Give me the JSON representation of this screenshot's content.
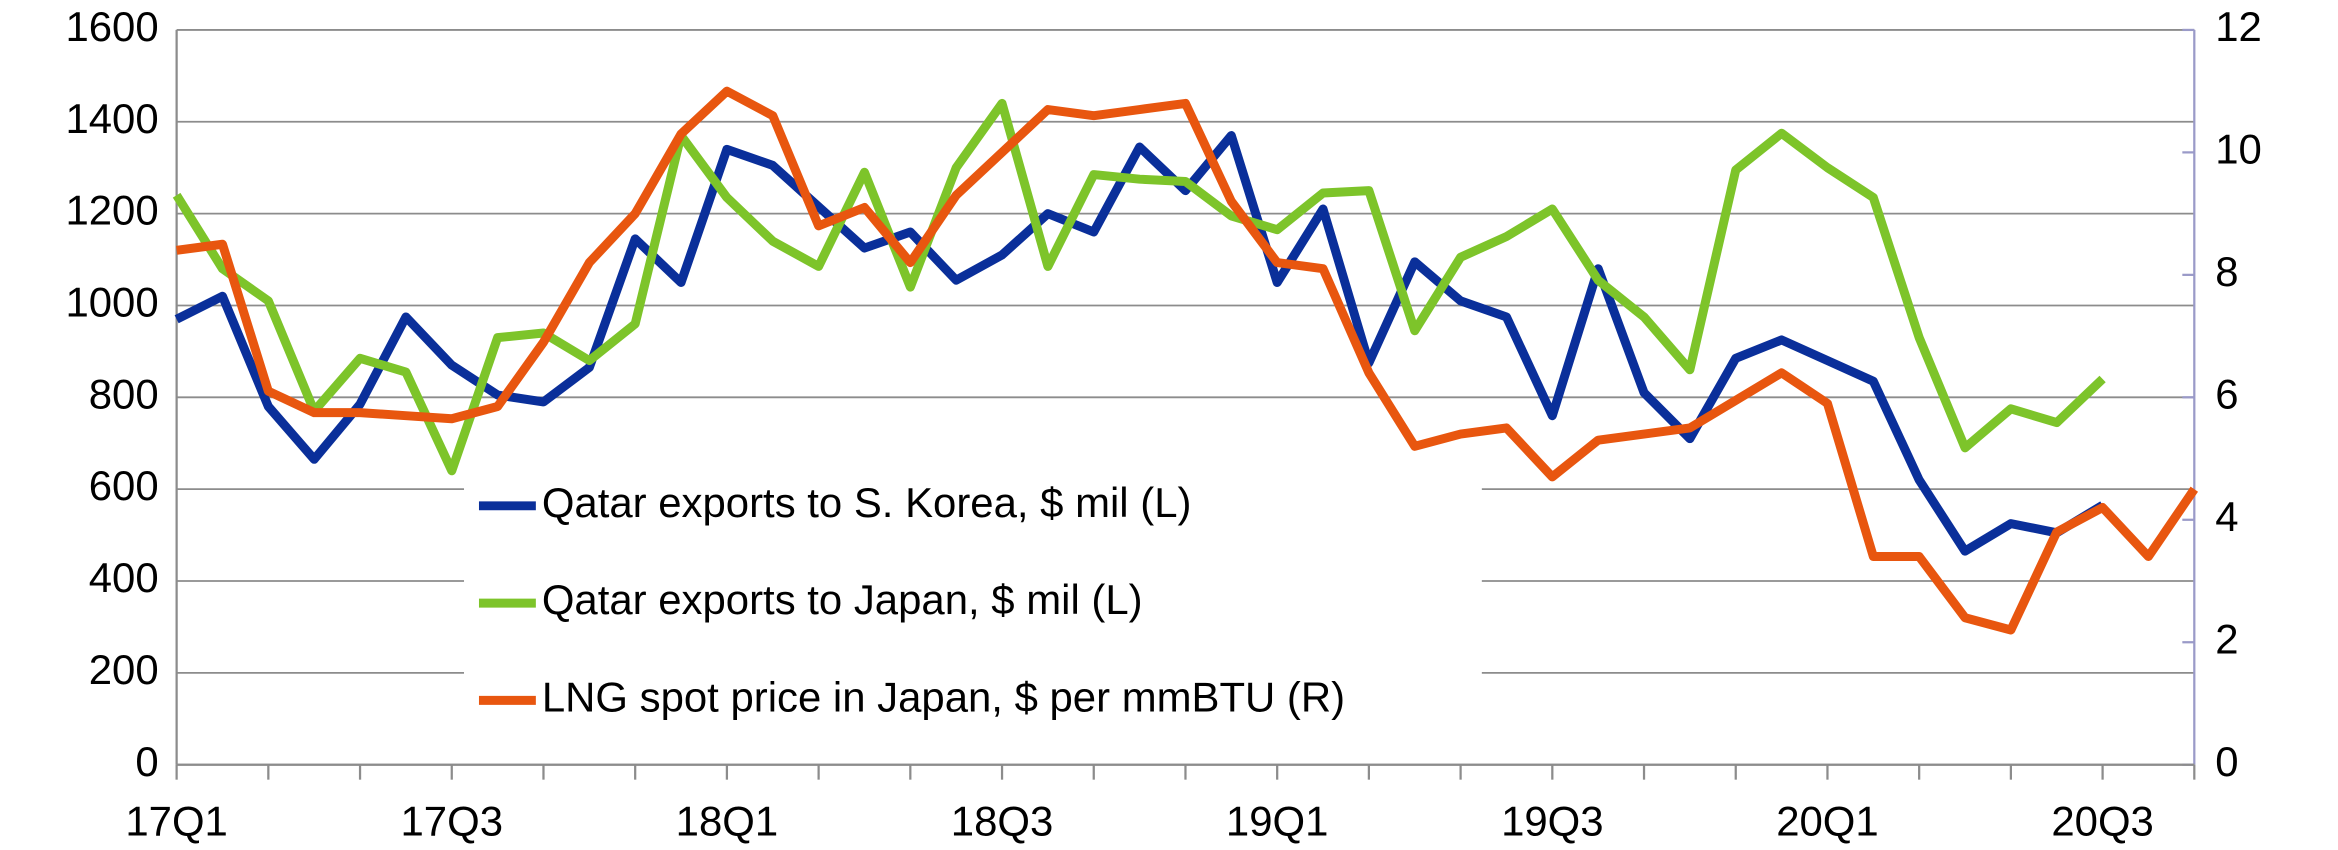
{
  "chart_data": {
    "type": "line",
    "categories": [
      "17Q1",
      null,
      null,
      null,
      null,
      null,
      "17Q3",
      null,
      null,
      null,
      null,
      null,
      "18Q1",
      null,
      null,
      null,
      null,
      null,
      "18Q3",
      null,
      null,
      null,
      null,
      null,
      "19Q1",
      null,
      null,
      null,
      null,
      null,
      "19Q3",
      null,
      null,
      null,
      null,
      null,
      "20Q1",
      null,
      null,
      null,
      null,
      null,
      "20Q3",
      null,
      null
    ],
    "series": [
      {
        "name": "Qatar exports to S. Korea, $ mil (L)",
        "color": "#0a2f9a",
        "axis": "y",
        "values": [
          970,
          1020,
          780,
          665,
          785,
          975,
          870,
          805,
          790,
          865,
          1145,
          1050,
          1340,
          1305,
          1215,
          1125,
          1160,
          1055,
          1110,
          1200,
          1160,
          1345,
          1250,
          1370,
          1050,
          1210,
          875,
          1095,
          1010,
          975,
          760,
          1080,
          810,
          710,
          885,
          925,
          880,
          835,
          620,
          465,
          525,
          505,
          565,
          null,
          null
        ]
      },
      {
        "name": "Qatar exports to Japan, $ mil (L)",
        "color": "#7dc42a",
        "axis": "y",
        "values": [
          1240,
          1080,
          1010,
          770,
          885,
          855,
          640,
          930,
          940,
          880,
          960,
          1370,
          1235,
          1140,
          1085,
          1290,
          1040,
          1300,
          1440,
          1085,
          1285,
          1275,
          1270,
          1195,
          1165,
          1245,
          1250,
          945,
          1105,
          1150,
          1210,
          1055,
          975,
          860,
          1295,
          1375,
          1300,
          1235,
          930,
          690,
          775,
          745,
          840,
          null,
          null
        ]
      },
      {
        "name": "LNG spot price in Japan, $ per mmBTU (R)",
        "color": "#e8560f",
        "axis": "y2",
        "values": [
          8.4,
          8.5,
          6.1,
          5.75,
          5.75,
          5.7,
          5.65,
          5.85,
          6.9,
          8.2,
          9.0,
          10.3,
          11.0,
          10.6,
          8.8,
          9.1,
          8.2,
          9.3,
          10.0,
          10.7,
          10.6,
          10.7,
          10.8,
          9.2,
          8.2,
          8.1,
          6.4,
          5.2,
          5.4,
          5.5,
          4.7,
          5.3,
          5.4,
          5.5,
          5.95,
          6.4,
          5.9,
          3.4,
          3.4,
          2.4,
          2.2,
          3.8,
          4.2,
          3.4,
          4.5
        ]
      }
    ],
    "ylim": [
      0,
      1600
    ],
    "yticks": [
      0,
      200,
      400,
      600,
      800,
      1000,
      1200,
      1400,
      1600
    ],
    "y2lim": [
      0,
      12
    ],
    "y2ticks": [
      0,
      2,
      4,
      6,
      8,
      10,
      12
    ],
    "grid": true,
    "legend": "center"
  }
}
